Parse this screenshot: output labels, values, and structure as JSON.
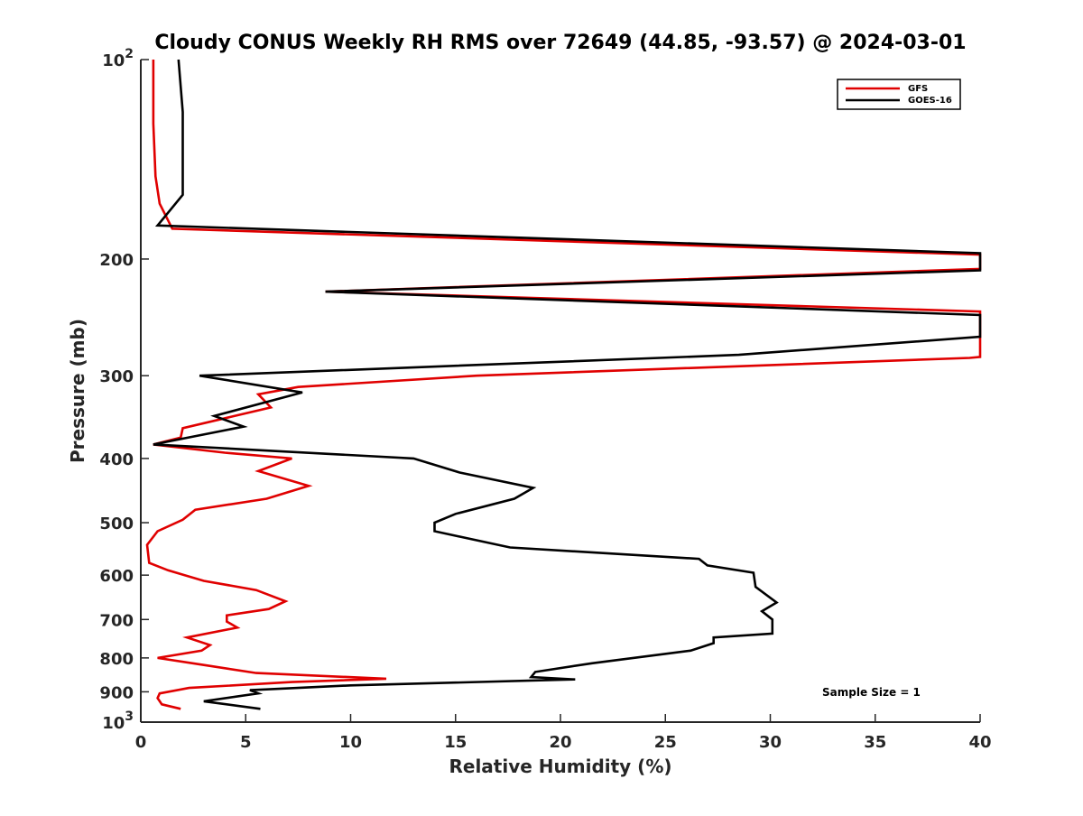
{
  "chart_data": {
    "type": "line",
    "title": "Cloudy CONUS Weekly RH RMS over 72649 (44.85, -93.57) @ 2024-03-01",
    "xlabel": "Relative Humidity (%)",
    "ylabel": "Pressure (mb)",
    "xlim": [
      0,
      40
    ],
    "ylim": [
      100,
      1000
    ],
    "y_scale": "log",
    "y_reversed": true,
    "grid": false,
    "legend_position": "top-right",
    "x_ticks": [
      "0",
      "5",
      "10",
      "15",
      "20",
      "25",
      "30",
      "35",
      "40"
    ],
    "y_ticks": [
      {
        "value": 100,
        "base": "10",
        "exp": "2"
      },
      {
        "value": 200,
        "label": "200"
      },
      {
        "value": 300,
        "label": "300"
      },
      {
        "value": 400,
        "label": "400"
      },
      {
        "value": 500,
        "label": "500"
      },
      {
        "value": 600,
        "label": "600"
      },
      {
        "value": 700,
        "label": "700"
      },
      {
        "value": 800,
        "label": "800"
      },
      {
        "value": 900,
        "label": "900"
      },
      {
        "value": 1000,
        "base": "10",
        "exp": "3"
      }
    ],
    "annotation": "Sample Size = 1",
    "series": [
      {
        "name": "GFS",
        "color": "#e00000",
        "points": [
          [
            0.6,
            100
          ],
          [
            0.6,
            125
          ],
          [
            0.7,
            150
          ],
          [
            0.9,
            165
          ],
          [
            1.5,
            180
          ],
          [
            40,
            197
          ],
          [
            40,
            207
          ],
          [
            8.8,
            224
          ],
          [
            40,
            240
          ],
          [
            40,
            281
          ],
          [
            39.5,
            282
          ],
          [
            16.0,
            300
          ],
          [
            7.5,
            312
          ],
          [
            5.6,
            320
          ],
          [
            6.2,
            335
          ],
          [
            2.0,
            360
          ],
          [
            1.9,
            372
          ],
          [
            0.6,
            381
          ],
          [
            4.0,
            392
          ],
          [
            7.2,
            400
          ],
          [
            5.6,
            418
          ],
          [
            8.0,
            440
          ],
          [
            6.0,
            460
          ],
          [
            2.6,
            478
          ],
          [
            2.0,
            495
          ],
          [
            0.8,
            515
          ],
          [
            0.3,
            540
          ],
          [
            0.4,
            575
          ],
          [
            1.3,
            590
          ],
          [
            3.0,
            612
          ],
          [
            5.5,
            632
          ],
          [
            6.9,
            657
          ],
          [
            6.1,
            675
          ],
          [
            4.1,
            690
          ],
          [
            4.1,
            705
          ],
          [
            4.6,
            720
          ],
          [
            2.2,
            745
          ],
          [
            3.3,
            765
          ],
          [
            2.9,
            780
          ],
          [
            0.8,
            800
          ],
          [
            3.0,
            820
          ],
          [
            5.5,
            843
          ],
          [
            11.7,
            860
          ],
          [
            7.2,
            870
          ],
          [
            2.3,
            888
          ],
          [
            0.9,
            905
          ],
          [
            0.8,
            920
          ],
          [
            1.0,
            940
          ],
          [
            1.9,
            955
          ]
        ]
      },
      {
        "name": "GOES-16",
        "color": "#000000",
        "points": [
          [
            1.8,
            100
          ],
          [
            2.0,
            120
          ],
          [
            2.0,
            160
          ],
          [
            0.8,
            178
          ],
          [
            40,
            196
          ],
          [
            40,
            208
          ],
          [
            8.8,
            224
          ],
          [
            40,
            243
          ],
          [
            40,
            262
          ],
          [
            28.5,
            279
          ],
          [
            2.8,
            300
          ],
          [
            7.7,
            318
          ],
          [
            3.5,
            345
          ],
          [
            4.9,
            358
          ],
          [
            0.6,
            381
          ],
          [
            13.0,
            400
          ],
          [
            15.2,
            420
          ],
          [
            18.7,
            443
          ],
          [
            17.8,
            460
          ],
          [
            15.0,
            485
          ],
          [
            14.0,
            500
          ],
          [
            14.0,
            515
          ],
          [
            17.6,
            545
          ],
          [
            26.6,
            567
          ],
          [
            27.0,
            580
          ],
          [
            29.2,
            595
          ],
          [
            29.3,
            625
          ],
          [
            30.3,
            660
          ],
          [
            29.6,
            680
          ],
          [
            30.1,
            700
          ],
          [
            30.1,
            735
          ],
          [
            27.3,
            745
          ],
          [
            27.3,
            760
          ],
          [
            26.2,
            780
          ],
          [
            21.5,
            815
          ],
          [
            18.8,
            840
          ],
          [
            18.6,
            855
          ],
          [
            20.7,
            862
          ],
          [
            10.0,
            880
          ],
          [
            5.2,
            895
          ],
          [
            5.6,
            905
          ],
          [
            3.0,
            930
          ],
          [
            5.7,
            955
          ]
        ]
      }
    ]
  }
}
